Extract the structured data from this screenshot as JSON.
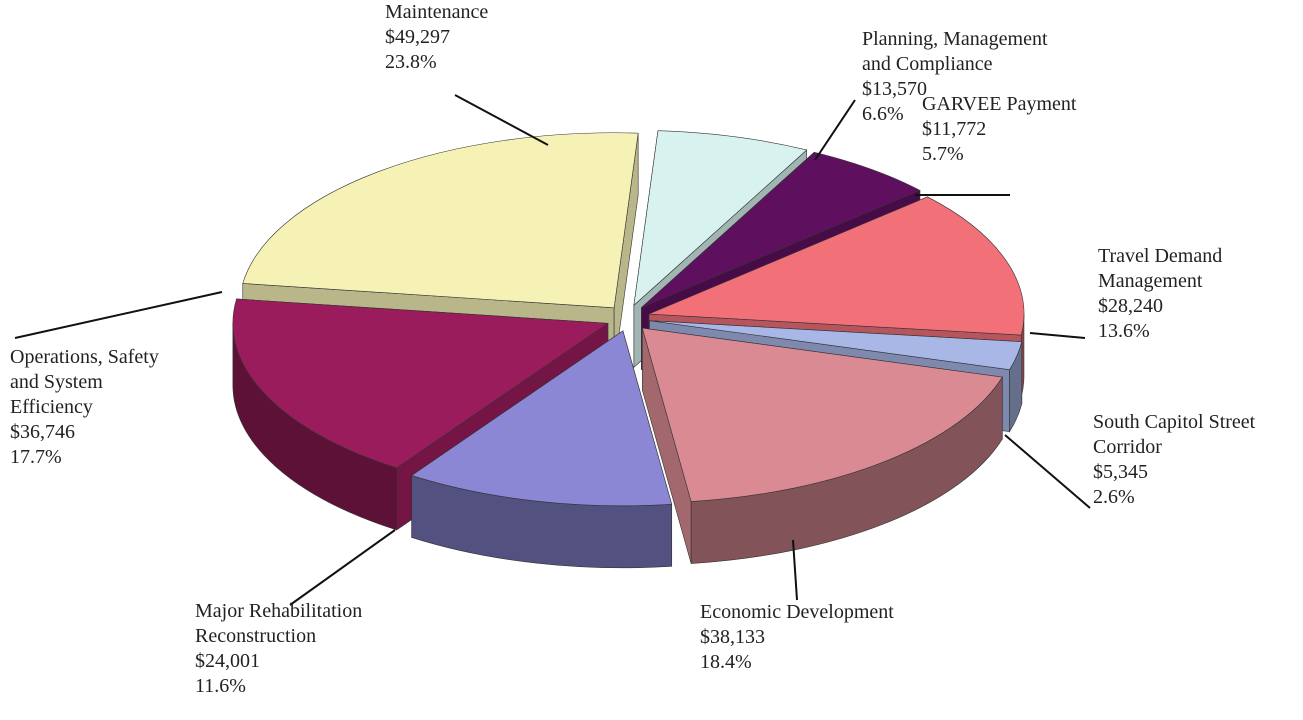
{
  "chart_data": {
    "type": "pie3d",
    "categories": [
      "Maintenance",
      "Planning, Management\nand Compliance",
      "GARVEE Payment",
      "Travel Demand\nManagement",
      "South Capitol Street\nCorridor",
      "Economic Development",
      "Major Rehabilitation\nReconstruction",
      "Operations, Safety\nand System\nEfficiency"
    ],
    "values": [
      49297,
      13570,
      11772,
      28240,
      5345,
      38133,
      24001,
      36746
    ],
    "value_labels": [
      "$49,297",
      "$13,570",
      "$11,772",
      "$28,240",
      "$5,345",
      "$38,133",
      "$24,001",
      "$36,746"
    ],
    "percents": [
      23.8,
      6.6,
      5.7,
      13.6,
      2.6,
      18.4,
      11.6,
      17.7
    ],
    "percent_labels": [
      "23.8%",
      "6.6%",
      "5.7%",
      "13.6%",
      "2.6%",
      "18.4%",
      "11.6%",
      "17.7%"
    ],
    "colors": [
      "#f6f2b6",
      "#d7f2ef",
      "#5e105f",
      "#f27179",
      "#a8b7e6",
      "#d98a93",
      "#8b87d5",
      "#9b1c5c"
    ]
  }
}
